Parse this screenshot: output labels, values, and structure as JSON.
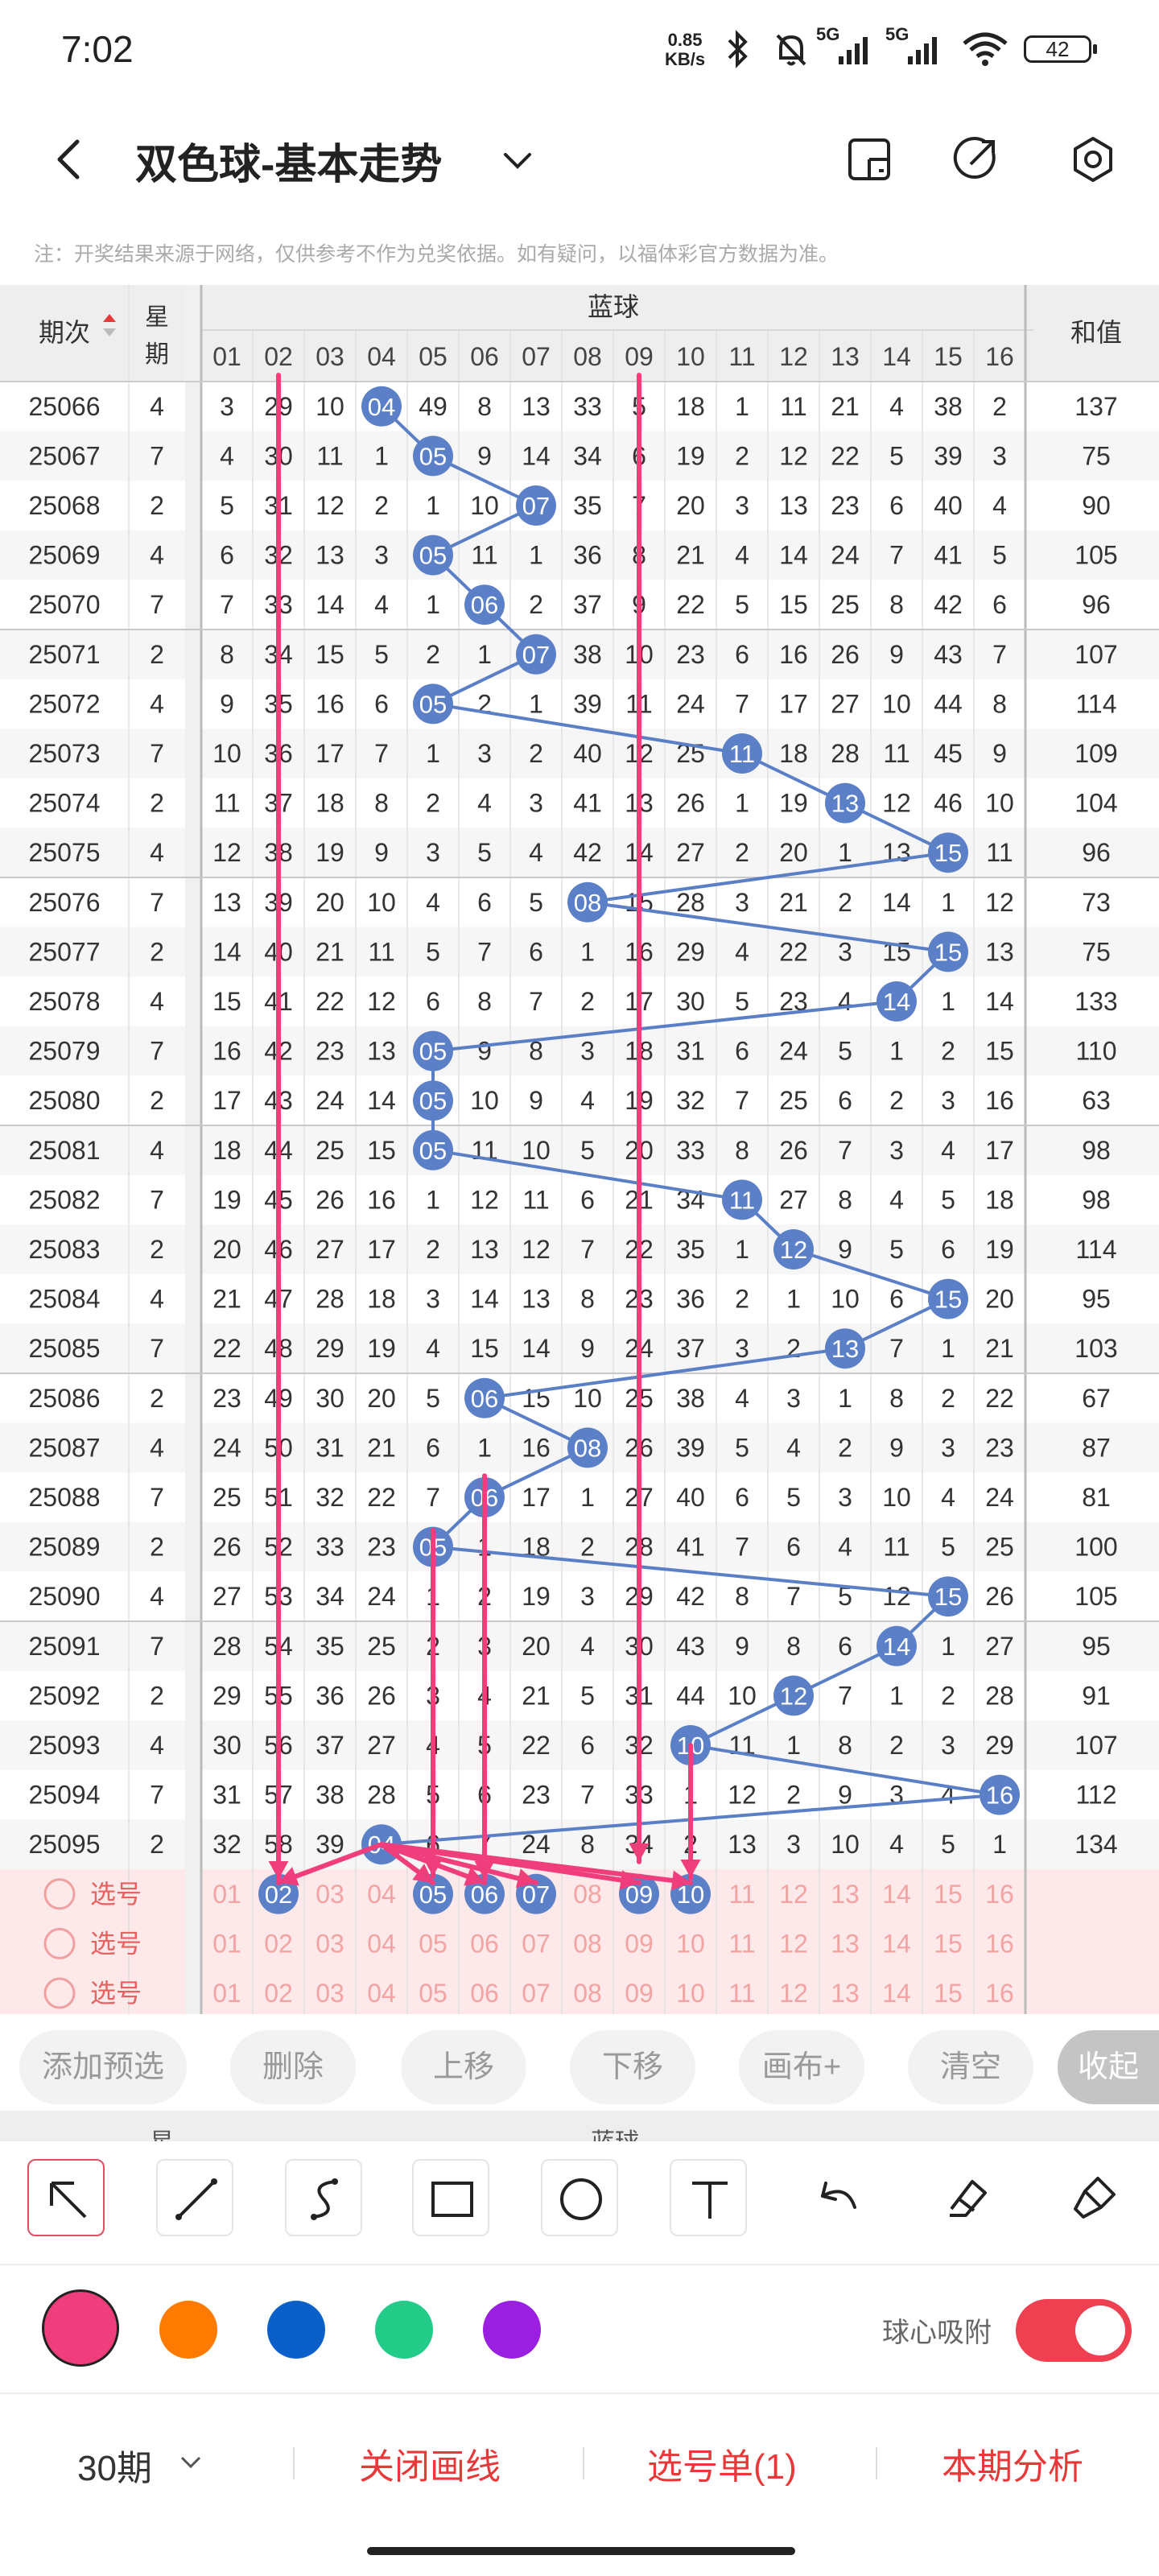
{
  "status_bar": {
    "time": "7:02",
    "net_speed_value": "0.85",
    "net_speed_unit": "KB/s",
    "signal1": "5G",
    "signal2": "5G",
    "battery": "42"
  },
  "header": {
    "title": "双色球-基本走势",
    "icons": [
      "back-icon",
      "chevron-down-icon",
      "phone-layout-icon",
      "share-icon",
      "settings-icon"
    ]
  },
  "note": "注：开奖结果来源于网络，仅供参考不作为兑奖依据。如有疑问，以福体彩官方数据为准。",
  "table": {
    "col_period": "期次",
    "col_weekday_1": "星",
    "col_weekday_2": "期",
    "section_blue": "蓝球",
    "col_sum": "和值",
    "blue_numbers": [
      "01",
      "02",
      "03",
      "04",
      "05",
      "06",
      "07",
      "08",
      "09",
      "10",
      "11",
      "12",
      "13",
      "14",
      "15",
      "16"
    ],
    "rows": [
      {
        "period": "25066",
        "weekday": "4",
        "cells": [
          3,
          29,
          10,
          "04",
          49,
          8,
          13,
          33,
          5,
          18,
          1,
          11,
          21,
          4,
          38,
          2
        ],
        "sum": "137"
      },
      {
        "period": "25067",
        "weekday": "7",
        "cells": [
          4,
          30,
          11,
          1,
          "05",
          9,
          14,
          34,
          6,
          19,
          2,
          12,
          22,
          5,
          39,
          3
        ],
        "sum": "75"
      },
      {
        "period": "25068",
        "weekday": "2",
        "cells": [
          5,
          31,
          12,
          2,
          1,
          10,
          "07",
          35,
          7,
          20,
          3,
          13,
          23,
          6,
          40,
          4
        ],
        "sum": "90"
      },
      {
        "period": "25069",
        "weekday": "4",
        "cells": [
          6,
          32,
          13,
          3,
          "05",
          11,
          1,
          36,
          8,
          21,
          4,
          14,
          24,
          7,
          41,
          5
        ],
        "sum": "105"
      },
      {
        "period": "25070",
        "weekday": "7",
        "cells": [
          7,
          33,
          14,
          4,
          1,
          "06",
          2,
          37,
          9,
          22,
          5,
          15,
          25,
          8,
          42,
          6
        ],
        "sum": "96"
      },
      {
        "period": "25071",
        "weekday": "2",
        "cells": [
          8,
          34,
          15,
          5,
          2,
          1,
          "07",
          38,
          10,
          23,
          6,
          16,
          26,
          9,
          43,
          7
        ],
        "sum": "107"
      },
      {
        "period": "25072",
        "weekday": "4",
        "cells": [
          9,
          35,
          16,
          6,
          "05",
          2,
          1,
          39,
          11,
          24,
          7,
          17,
          27,
          10,
          44,
          8
        ],
        "sum": "114"
      },
      {
        "period": "25073",
        "weekday": "7",
        "cells": [
          10,
          36,
          17,
          7,
          1,
          3,
          2,
          40,
          12,
          25,
          "11",
          18,
          28,
          11,
          45,
          9
        ],
        "sum": "109"
      },
      {
        "period": "25074",
        "weekday": "2",
        "cells": [
          11,
          37,
          18,
          8,
          2,
          4,
          3,
          41,
          13,
          26,
          1,
          19,
          "13",
          12,
          46,
          10
        ],
        "sum": "104"
      },
      {
        "period": "25075",
        "weekday": "4",
        "cells": [
          12,
          38,
          19,
          9,
          3,
          5,
          4,
          42,
          14,
          27,
          2,
          20,
          1,
          13,
          "15",
          11
        ],
        "sum": "96"
      },
      {
        "period": "25076",
        "weekday": "7",
        "cells": [
          13,
          39,
          20,
          10,
          4,
          6,
          5,
          "08",
          15,
          28,
          3,
          21,
          2,
          14,
          1,
          12
        ],
        "sum": "73"
      },
      {
        "period": "25077",
        "weekday": "2",
        "cells": [
          14,
          40,
          21,
          11,
          5,
          7,
          6,
          1,
          16,
          29,
          4,
          22,
          3,
          15,
          "15",
          13
        ],
        "sum": "75"
      },
      {
        "period": "25078",
        "weekday": "4",
        "cells": [
          15,
          41,
          22,
          12,
          6,
          8,
          7,
          2,
          17,
          30,
          5,
          23,
          4,
          "14",
          1,
          14
        ],
        "sum": "133"
      },
      {
        "period": "25079",
        "weekday": "7",
        "cells": [
          16,
          42,
          23,
          13,
          "05",
          9,
          8,
          3,
          18,
          31,
          6,
          24,
          5,
          1,
          2,
          15
        ],
        "sum": "110"
      },
      {
        "period": "25080",
        "weekday": "2",
        "cells": [
          17,
          43,
          24,
          14,
          "05",
          10,
          9,
          4,
          19,
          32,
          7,
          25,
          6,
          2,
          3,
          16
        ],
        "sum": "63"
      },
      {
        "period": "25081",
        "weekday": "4",
        "cells": [
          18,
          44,
          25,
          15,
          "05",
          11,
          10,
          5,
          20,
          33,
          8,
          26,
          7,
          3,
          4,
          17
        ],
        "sum": "98"
      },
      {
        "period": "25082",
        "weekday": "7",
        "cells": [
          19,
          45,
          26,
          16,
          1,
          12,
          11,
          6,
          21,
          34,
          "11",
          27,
          8,
          4,
          5,
          18
        ],
        "sum": "98"
      },
      {
        "period": "25083",
        "weekday": "2",
        "cells": [
          20,
          46,
          27,
          17,
          2,
          13,
          12,
          7,
          22,
          35,
          1,
          "12",
          9,
          5,
          6,
          19
        ],
        "sum": "114"
      },
      {
        "period": "25084",
        "weekday": "4",
        "cells": [
          21,
          47,
          28,
          18,
          3,
          14,
          13,
          8,
          23,
          36,
          2,
          1,
          10,
          6,
          "15",
          20
        ],
        "sum": "95"
      },
      {
        "period": "25085",
        "weekday": "7",
        "cells": [
          22,
          48,
          29,
          19,
          4,
          15,
          14,
          9,
          24,
          37,
          3,
          2,
          "13",
          7,
          1,
          21
        ],
        "sum": "103"
      },
      {
        "period": "25086",
        "weekday": "2",
        "cells": [
          23,
          49,
          30,
          20,
          5,
          "06",
          15,
          10,
          25,
          38,
          4,
          3,
          1,
          8,
          2,
          22
        ],
        "sum": "67"
      },
      {
        "period": "25087",
        "weekday": "4",
        "cells": [
          24,
          50,
          31,
          21,
          6,
          1,
          16,
          "08",
          26,
          39,
          5,
          4,
          2,
          9,
          3,
          23
        ],
        "sum": "87"
      },
      {
        "period": "25088",
        "weekday": "7",
        "cells": [
          25,
          51,
          32,
          22,
          7,
          "06",
          17,
          1,
          27,
          40,
          6,
          5,
          3,
          10,
          4,
          24
        ],
        "sum": "81"
      },
      {
        "period": "25089",
        "weekday": "2",
        "cells": [
          26,
          52,
          33,
          23,
          "05",
          1,
          18,
          2,
          28,
          41,
          7,
          6,
          4,
          11,
          5,
          25
        ],
        "sum": "100"
      },
      {
        "period": "25090",
        "weekday": "4",
        "cells": [
          27,
          53,
          34,
          24,
          1,
          2,
          19,
          3,
          29,
          42,
          8,
          7,
          5,
          12,
          "15",
          26
        ],
        "sum": "105"
      },
      {
        "period": "25091",
        "weekday": "7",
        "cells": [
          28,
          54,
          35,
          25,
          2,
          3,
          20,
          4,
          30,
          43,
          9,
          8,
          6,
          "14",
          1,
          27
        ],
        "sum": "95"
      },
      {
        "period": "25092",
        "weekday": "2",
        "cells": [
          29,
          55,
          36,
          26,
          3,
          4,
          21,
          5,
          31,
          44,
          10,
          "12",
          7,
          1,
          2,
          28
        ],
        "sum": "91"
      },
      {
        "period": "25093",
        "weekday": "4",
        "cells": [
          30,
          56,
          37,
          27,
          4,
          5,
          22,
          6,
          32,
          "10",
          11,
          1,
          8,
          2,
          3,
          29
        ],
        "sum": "107"
      },
      {
        "period": "25094",
        "weekday": "7",
        "cells": [
          31,
          57,
          38,
          28,
          5,
          6,
          23,
          7,
          33,
          1,
          12,
          2,
          9,
          3,
          4,
          "16"
        ],
        "sum": "112"
      },
      {
        "period": "25095",
        "weekday": "2",
        "cells": [
          32,
          58,
          39,
          "04",
          6,
          7,
          24,
          8,
          34,
          2,
          13,
          3,
          10,
          4,
          5,
          1
        ],
        "sum": "134"
      }
    ],
    "pick_label": "选号",
    "pick_rows": [
      {
        "selected": [
          "02",
          "05",
          "06",
          "07",
          "09",
          "10"
        ]
      },
      {
        "selected": []
      },
      {
        "selected": []
      }
    ]
  },
  "toolbar": {
    "add_presel": "添加预选",
    "delete": "删除",
    "move_up": "上移",
    "move_down": "下移",
    "canvas_plus": "画布+",
    "clear": "清空",
    "collapse": "收起"
  },
  "sticky_header": {
    "weekday": "星",
    "blue": "蓝球"
  },
  "draw_tools": [
    "arrow-tool-icon",
    "line-tool-icon",
    "curve-tool-icon",
    "rectangle-tool-icon",
    "circle-tool-icon",
    "text-tool-icon",
    "undo-icon",
    "eraser-icon",
    "clear-brush-icon"
  ],
  "colors": {
    "swatches": [
      "#f03e7d",
      "#ff7a00",
      "#0a60c8",
      "#22cc88",
      "#9a1fe0"
    ],
    "selected": "#f03e7d",
    "ball": "#5b80c8",
    "line": "#5a7fc6",
    "arrow": "#f03e7d",
    "pick_bg": "#fde9e9",
    "pick_text": "#f4a3a3"
  },
  "snap": {
    "label": "球心吸附",
    "on": true
  },
  "bottom": {
    "period": "30期",
    "close_draw": "关闭画线",
    "pick_list": "选号单(1)",
    "analysis": "本期分析"
  }
}
